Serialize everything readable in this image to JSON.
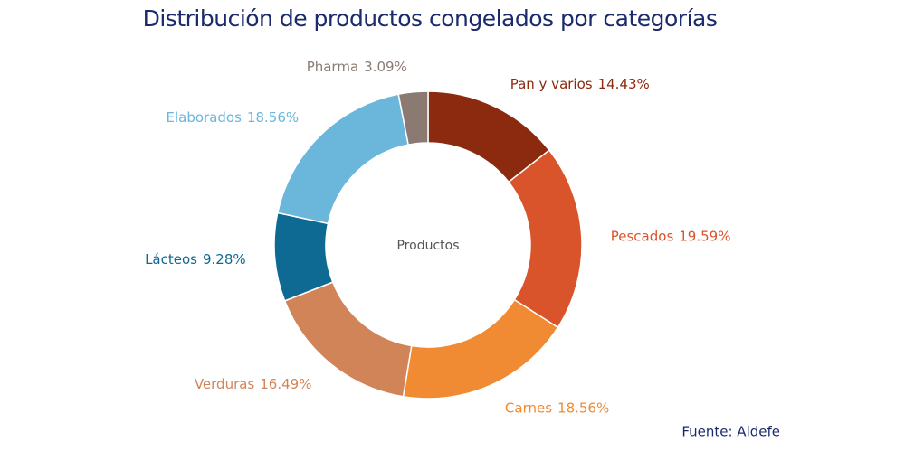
{
  "chart_data": {
    "type": "donut",
    "title": "Distribución de productos congelados por categorías",
    "center_label": "Productos",
    "categories": [
      "Pan y varios",
      "Pescados",
      "Carnes",
      "Verduras",
      "Lácteos",
      "Elaborados",
      "Pharma"
    ],
    "values": [
      14.43,
      19.59,
      18.56,
      16.49,
      9.28,
      18.56,
      3.09
    ],
    "value_labels": [
      "14.43%",
      "19.59%",
      "18.56%",
      "16.49%",
      "9.28%",
      "18.56%",
      "3.09%"
    ],
    "colors": [
      "#8b2a0e",
      "#d9532b",
      "#f08a33",
      "#d08458",
      "#0e6a92",
      "#6bb6db",
      "#8a7a72"
    ],
    "source": "Fuente:  Aldefe"
  }
}
